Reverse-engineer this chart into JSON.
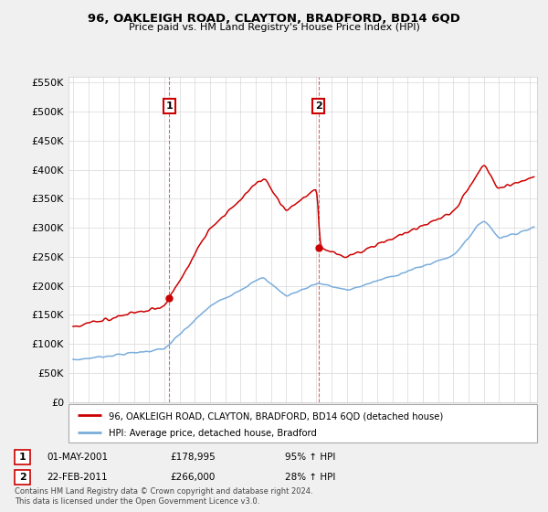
{
  "title": "96, OAKLEIGH ROAD, CLAYTON, BRADFORD, BD14 6QD",
  "subtitle": "Price paid vs. HM Land Registry's House Price Index (HPI)",
  "legend_line1": "96, OAKLEIGH ROAD, CLAYTON, BRADFORD, BD14 6QD (detached house)",
  "legend_line2": "HPI: Average price, detached house, Bradford",
  "annotation1_label": "1",
  "annotation1_date": "01-MAY-2001",
  "annotation1_price": "£178,995",
  "annotation1_hpi": "95% ↑ HPI",
  "annotation2_label": "2",
  "annotation2_date": "22-FEB-2011",
  "annotation2_price": "£266,000",
  "annotation2_hpi": "28% ↑ HPI",
  "footer": "Contains HM Land Registry data © Crown copyright and database right 2024.\nThis data is licensed under the Open Government Licence v3.0.",
  "red_color": "#cc0000",
  "blue_color": "#7aaddc",
  "purchase1_x": 2001.33,
  "purchase1_y": 178995,
  "purchase2_x": 2011.13,
  "purchase2_y": 266000,
  "ylim": [
    0,
    560000
  ],
  "xlim_start": 1994.7,
  "xlim_end": 2025.5,
  "bg_color": "#f0f0f0"
}
